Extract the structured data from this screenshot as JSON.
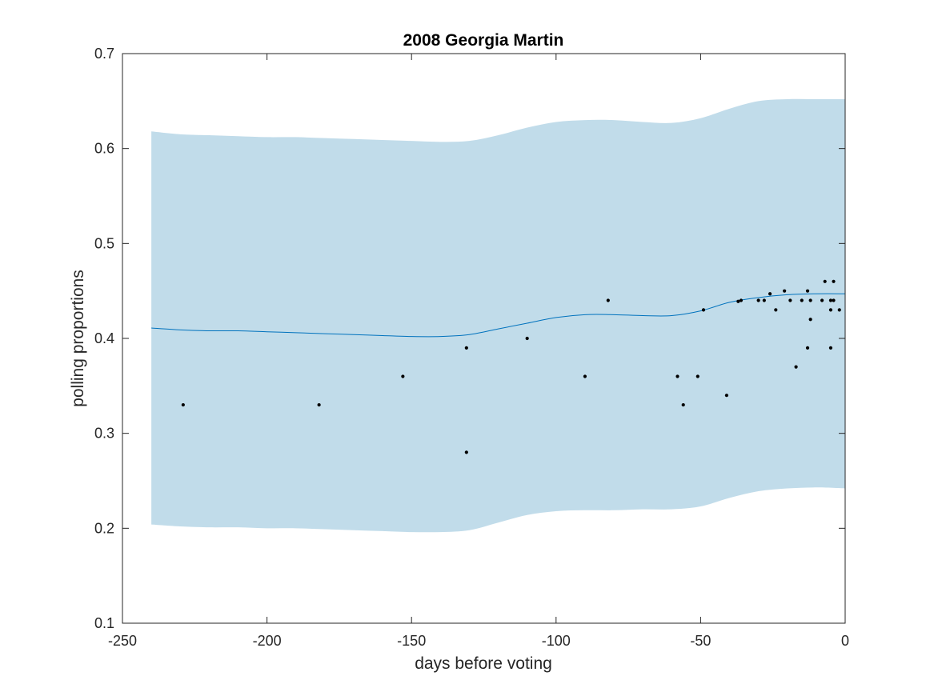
{
  "chart_data": {
    "type": "line",
    "title": "2008 Georgia Martin",
    "xlabel": "days before voting",
    "ylabel": "polling proportions",
    "xlim": [
      -250,
      0
    ],
    "ylim": [
      0.1,
      0.7
    ],
    "xticks": [
      -250,
      -200,
      -150,
      -100,
      -50,
      0
    ],
    "yticks": [
      0.1,
      0.2,
      0.3,
      0.4,
      0.5,
      0.6,
      0.7
    ],
    "xtick_labels": [
      "-250",
      "-200",
      "-150",
      "-100",
      "-50",
      "0"
    ],
    "ytick_labels": [
      "0.1",
      "0.2",
      "0.3",
      "0.4",
      "0.5",
      "0.6",
      "0.7"
    ],
    "grid": false,
    "colors": {
      "band": "#c1dcea",
      "line": "#0072bd",
      "points": "#000000",
      "axes": "#262626"
    },
    "band": {
      "x": [
        -240,
        -230,
        -220,
        -210,
        -200,
        -190,
        -180,
        -170,
        -160,
        -150,
        -140,
        -130,
        -120,
        -110,
        -100,
        -90,
        -80,
        -70,
        -60,
        -50,
        -40,
        -30,
        -20,
        -10,
        0
      ],
      "upper": [
        0.618,
        0.615,
        0.614,
        0.613,
        0.612,
        0.612,
        0.611,
        0.61,
        0.609,
        0.608,
        0.607,
        0.608,
        0.614,
        0.622,
        0.628,
        0.63,
        0.63,
        0.628,
        0.627,
        0.632,
        0.642,
        0.65,
        0.652,
        0.652,
        0.652
      ],
      "lower": [
        0.204,
        0.202,
        0.201,
        0.201,
        0.2,
        0.2,
        0.199,
        0.198,
        0.197,
        0.196,
        0.196,
        0.198,
        0.206,
        0.214,
        0.218,
        0.219,
        0.219,
        0.22,
        0.22,
        0.223,
        0.232,
        0.239,
        0.242,
        0.243,
        0.242
      ]
    },
    "trend": {
      "x": [
        -240,
        -230,
        -220,
        -210,
        -200,
        -190,
        -180,
        -170,
        -160,
        -150,
        -140,
        -130,
        -120,
        -110,
        -100,
        -90,
        -80,
        -70,
        -60,
        -50,
        -40,
        -30,
        -20,
        -10,
        0
      ],
      "y": [
        0.411,
        0.409,
        0.408,
        0.408,
        0.407,
        0.406,
        0.405,
        0.404,
        0.403,
        0.402,
        0.402,
        0.404,
        0.41,
        0.416,
        0.422,
        0.425,
        0.425,
        0.424,
        0.424,
        0.429,
        0.438,
        0.443,
        0.446,
        0.447,
        0.447
      ]
    },
    "points": [
      [
        -229,
        0.33
      ],
      [
        -182,
        0.33
      ],
      [
        -153,
        0.36
      ],
      [
        -131,
        0.39
      ],
      [
        -131,
        0.28
      ],
      [
        -110,
        0.4
      ],
      [
        -90,
        0.36
      ],
      [
        -82,
        0.44
      ],
      [
        -58,
        0.36
      ],
      [
        -56,
        0.33
      ],
      [
        -51,
        0.36
      ],
      [
        -49,
        0.43
      ],
      [
        -41,
        0.34
      ],
      [
        -37,
        0.439
      ],
      [
        -36,
        0.44
      ],
      [
        -30,
        0.44
      ],
      [
        -28,
        0.44
      ],
      [
        -26,
        0.447
      ],
      [
        -24,
        0.43
      ],
      [
        -21,
        0.45
      ],
      [
        -19,
        0.44
      ],
      [
        -17,
        0.37
      ],
      [
        -15,
        0.44
      ],
      [
        -13,
        0.45
      ],
      [
        -13,
        0.39
      ],
      [
        -12,
        0.44
      ],
      [
        -12,
        0.42
      ],
      [
        -8,
        0.44
      ],
      [
        -7,
        0.46
      ],
      [
        -5,
        0.43
      ],
      [
        -5,
        0.39
      ],
      [
        -5,
        0.44
      ],
      [
        -4,
        0.44
      ],
      [
        -4,
        0.46
      ],
      [
        -2,
        0.43
      ]
    ]
  }
}
